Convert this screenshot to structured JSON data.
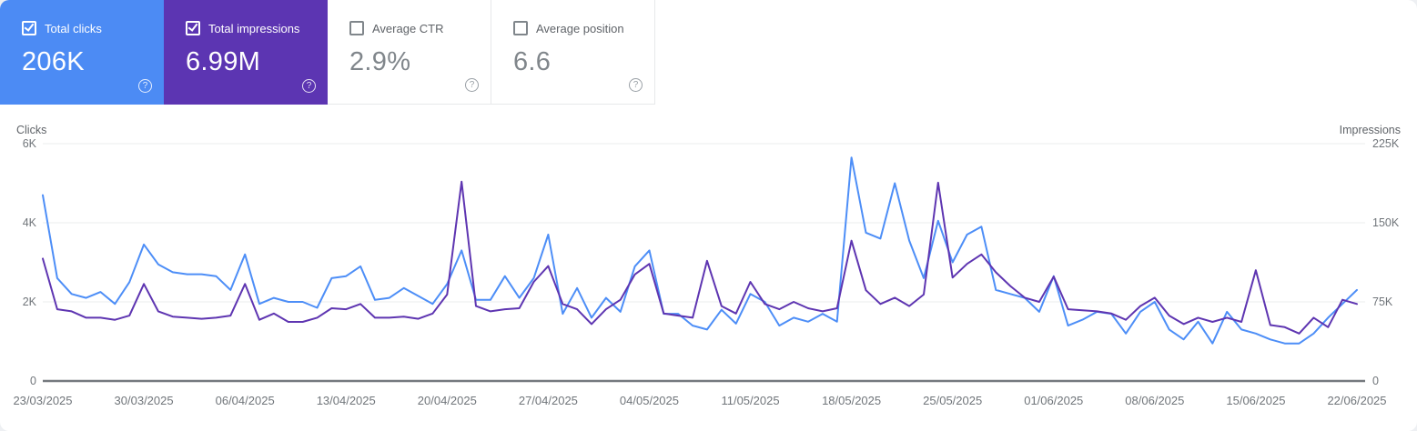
{
  "cards": [
    {
      "label": "Total clicks",
      "value": "206K",
      "checked": true,
      "color": "#4c8bf4"
    },
    {
      "label": "Total impressions",
      "value": "6.99M",
      "checked": true,
      "color": "#5c35b2"
    },
    {
      "label": "Average CTR",
      "value": "2.9%",
      "checked": false,
      "color": "#ffffff"
    },
    {
      "label": "Average position",
      "value": "6.6",
      "checked": false,
      "color": "#ffffff"
    }
  ],
  "chart_data": {
    "type": "line",
    "x_unit": "day",
    "x_start": "23/03/2025",
    "x_end": "22/06/2025",
    "points": 92,
    "x_tick_days": [
      0,
      7,
      14,
      21,
      28,
      35,
      42,
      49,
      56,
      63,
      70,
      77,
      84,
      91
    ],
    "x_tick_labels": [
      "23/03/2025",
      "30/03/2025",
      "06/04/2025",
      "13/04/2025",
      "20/04/2025",
      "27/04/2025",
      "04/05/2025",
      "11/05/2025",
      "18/05/2025",
      "25/05/2025",
      "01/06/2025",
      "08/06/2025",
      "15/06/2025",
      "22/06/2025"
    ],
    "left_axis": {
      "title": "Clicks",
      "max": 6000,
      "tick_values": [
        6000,
        4000,
        2000,
        0
      ],
      "tick_labels": [
        "6K",
        "4K",
        "2K",
        "0"
      ]
    },
    "right_axis": {
      "title": "Impressions",
      "max": 225000,
      "tick_values": [
        225000,
        150000,
        75000,
        0
      ],
      "tick_labels": [
        "225K",
        "150K",
        "75K",
        "0"
      ]
    },
    "grid": true,
    "legend_position": "none",
    "series": [
      {
        "name": "Total clicks",
        "axis": "left",
        "color": "#4d8ef7",
        "values": [
          4700,
          2600,
          2200,
          2100,
          2250,
          1950,
          2500,
          3450,
          2950,
          2750,
          2700,
          2700,
          2650,
          2300,
          3200,
          1950,
          2100,
          2000,
          2000,
          1850,
          2600,
          2650,
          2900,
          2050,
          2100,
          2350,
          2150,
          1950,
          2450,
          3300,
          2050,
          2050,
          2650,
          2100,
          2600,
          3700,
          1700,
          2350,
          1600,
          2100,
          1750,
          2900,
          3300,
          1700,
          1700,
          1400,
          1300,
          1800,
          1450,
          2200,
          2000,
          1400,
          1600,
          1500,
          1700,
          1500,
          5650,
          3750,
          3600,
          5000,
          3550,
          2600,
          4050,
          3000,
          3700,
          3900,
          2300,
          2200,
          2100,
          1750,
          2650,
          1400,
          1550,
          1750,
          1700,
          1200,
          1750,
          2000,
          1300,
          1050,
          1500,
          950,
          1750,
          1300,
          1200,
          1050,
          950,
          950,
          1200,
          1600,
          1950,
          2300
        ]
      },
      {
        "name": "Total impressions",
        "axis": "right",
        "color": "#5e35b1",
        "values": [
          116000,
          68000,
          66000,
          60000,
          60000,
          58000,
          62000,
          92000,
          66000,
          61000,
          60000,
          59000,
          60000,
          62000,
          92000,
          58000,
          64000,
          56000,
          56000,
          60000,
          69000,
          68000,
          73000,
          60000,
          60000,
          61000,
          59000,
          64000,
          82000,
          189000,
          71000,
          66000,
          68000,
          69000,
          94000,
          109000,
          73000,
          68000,
          54000,
          68000,
          77000,
          101000,
          111000,
          64000,
          62000,
          60000,
          114000,
          71000,
          64000,
          94000,
          73000,
          68000,
          75000,
          69000,
          66000,
          69000,
          133000,
          86000,
          73000,
          79000,
          71000,
          82000,
          188000,
          98000,
          111000,
          120000,
          103000,
          90000,
          79000,
          75000,
          99000,
          68000,
          67000,
          66000,
          64000,
          58000,
          71000,
          79000,
          62000,
          54000,
          60000,
          56000,
          60000,
          56000,
          105000,
          53000,
          51000,
          45000,
          60000,
          51000,
          77000,
          73000
        ]
      }
    ]
  }
}
